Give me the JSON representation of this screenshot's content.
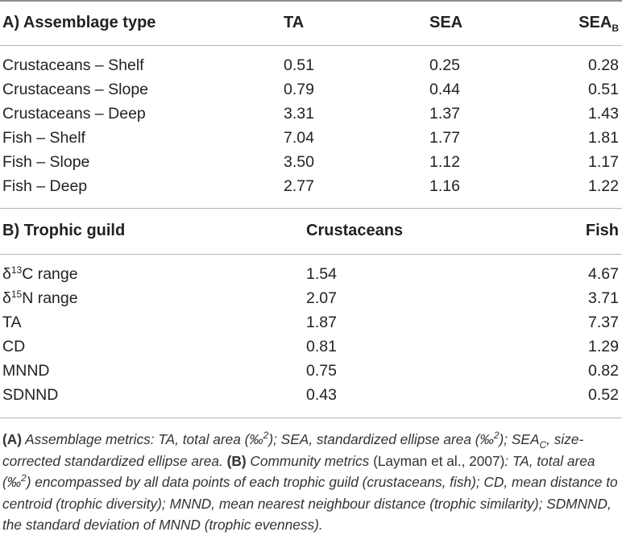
{
  "section_a": {
    "header": {
      "label": "A) Assemblage type",
      "col1": "TA",
      "col2": "SEA",
      "col3": "SEA",
      "col3_sub": "B"
    },
    "rows": [
      {
        "name": "Crustaceans – Shelf",
        "ta": "0.51",
        "sea": "0.25",
        "seab": "0.28"
      },
      {
        "name": "Crustaceans – Slope",
        "ta": "0.79",
        "sea": "0.44",
        "seab": "0.51"
      },
      {
        "name": "Crustaceans – Deep",
        "ta": "3.31",
        "sea": "1.37",
        "seab": "1.43"
      },
      {
        "name": "Fish – Shelf",
        "ta": "7.04",
        "sea": "1.77",
        "seab": "1.81"
      },
      {
        "name": "Fish – Slope",
        "ta": "3.50",
        "sea": "1.12",
        "seab": "1.17"
      },
      {
        "name": "Fish – Deep",
        "ta": "2.77",
        "sea": "1.16",
        "seab": "1.22"
      }
    ]
  },
  "section_b": {
    "header": {
      "label": "B) Trophic guild",
      "col1": "Crustaceans",
      "col2": "Fish"
    },
    "rows": [
      {
        "prefix": "δ",
        "sup": "13",
        "suffix": "C range",
        "crustaceans": "1.54",
        "fish": "4.67"
      },
      {
        "prefix": "δ",
        "sup": "15",
        "suffix": "N range",
        "crustaceans": "2.07",
        "fish": "3.71"
      },
      {
        "name": "TA",
        "crustaceans": "1.87",
        "fish": "7.37"
      },
      {
        "name": "CD",
        "crustaceans": "0.81",
        "fish": "1.29"
      },
      {
        "name": "MNND",
        "crustaceans": "0.75",
        "fish": "0.82"
      },
      {
        "name": "SDNND",
        "crustaceans": "0.43",
        "fish": "0.52"
      }
    ]
  },
  "footnote": {
    "a_label": "(A)",
    "a_text_1": " Assemblage metrics: TA, total area (‰",
    "sq": "2",
    "a_text_2": "); SEA, standardized ellipse area (‰",
    "a_text_3": "); SEA",
    "sub_c": "C",
    "a_text_4": ", size-corrected standardized ellipse area. ",
    "b_label": "(B)",
    "b_text_1": " Community metrics ",
    "citation": "(Layman et al., 2007)",
    "b_text_2": ": TA, total area (‰",
    "b_text_3": ") encompassed by all data points of each trophic guild (crustaceans, fish); CD, mean distance to centroid (trophic diversity); MNND, mean nearest neighbour distance (trophic similarity); SDMNND, the standard deviation of MNND (trophic evenness)."
  }
}
